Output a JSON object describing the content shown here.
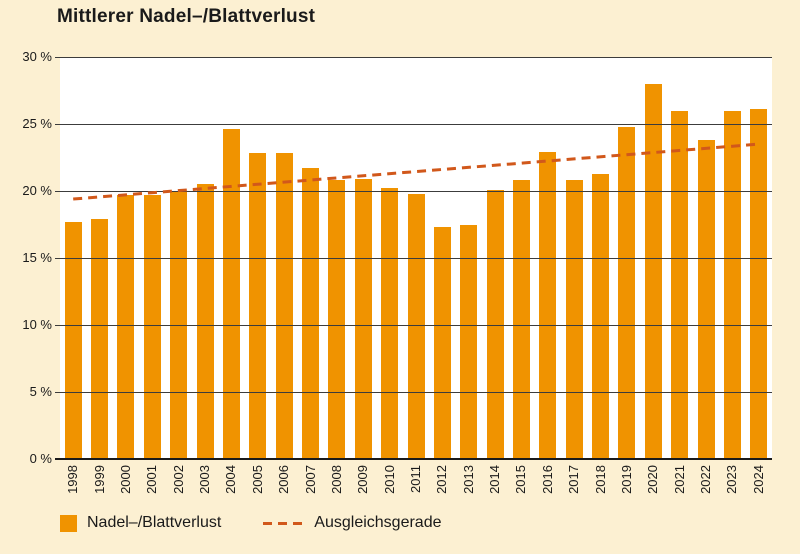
{
  "page": {
    "title": "Mittlerer Nadel–/Blattverlust"
  },
  "chart_data": {
    "type": "bar",
    "title": "Mittlerer Nadel–/Blattverlust",
    "categories": [
      "1998",
      "1999",
      "2000",
      "2001",
      "2002",
      "2003",
      "2004",
      "2005",
      "2006",
      "2007",
      "2008",
      "2009",
      "2010",
      "2011",
      "2012",
      "2013",
      "2014",
      "2015",
      "2016",
      "2017",
      "2018",
      "2019",
      "2020",
      "2021",
      "2022",
      "2023",
      "2024"
    ],
    "values": [
      17.7,
      17.9,
      19.7,
      19.7,
      20.0,
      20.5,
      24.6,
      22.8,
      22.8,
      21.7,
      20.8,
      20.9,
      20.2,
      19.8,
      17.3,
      17.5,
      20.1,
      20.8,
      22.9,
      20.8,
      21.3,
      24.8,
      28.0,
      26.0,
      23.8,
      26.0,
      26.1
    ],
    "series_name": "Nadel–/Blattverlust",
    "trend": {
      "name": "Ausgleichsgerade",
      "style": "dashed",
      "start_category": "1998",
      "end_category": "2024",
      "start_value": 19.4,
      "end_value": 23.5
    },
    "ylim": [
      0,
      30
    ],
    "yticks": [
      0,
      5,
      10,
      15,
      20,
      25,
      30
    ],
    "ytick_labels": [
      "0 %",
      "5 %",
      "10 %",
      "15 %",
      "20 %",
      "25 %",
      "30 %"
    ],
    "xlabel": "",
    "ylabel": "",
    "grid": "horizontal",
    "legend_position": "bottom",
    "legend": [
      {
        "label": "Nadel–/Blattverlust",
        "marker": "square"
      },
      {
        "label": "Ausgleichsgerade",
        "marker": "dashed-line"
      }
    ],
    "colors": {
      "bar": "#F09300",
      "trend": "#D1581B",
      "grid": "#3C3C3C",
      "zero_line": "#1A1A1A",
      "text": "#1A1A1A",
      "plot_background": "#FFFFFF",
      "page_background": "#FCF0D2"
    }
  }
}
